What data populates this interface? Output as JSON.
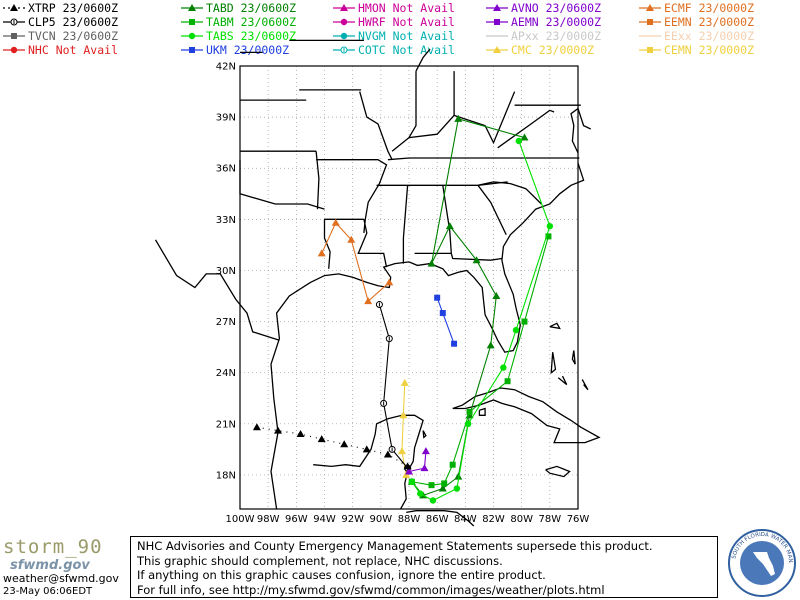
{
  "legend": [
    {
      "label": "XTRP 23/0600Z",
      "color": "#000000",
      "marker": "tri",
      "dash": "dot"
    },
    {
      "label": "TABD 23/0600Z",
      "color": "#008000",
      "marker": "tri",
      "dash": "solid"
    },
    {
      "label": "HMON Not Avail",
      "color": "#cc0099",
      "marker": "tri",
      "dash": "solid"
    },
    {
      "label": "AVNO 23/0600Z",
      "color": "#8000cc",
      "marker": "tri",
      "dash": "solid"
    },
    {
      "label": "ECMF 23/0000Z",
      "color": "#e07020",
      "marker": "tri",
      "dash": "solid"
    },
    {
      "label": "CLP5 23/0600Z",
      "color": "#000000",
      "marker": "circle0",
      "dash": "solid"
    },
    {
      "label": "TABM 23/0600Z",
      "color": "#00b000",
      "marker": "square",
      "dash": "solid"
    },
    {
      "label": "HWRF Not Avail",
      "color": "#cc0099",
      "marker": "circle",
      "dash": "solid"
    },
    {
      "label": "AEMN 23/0000Z",
      "color": "#8000cc",
      "marker": "square",
      "dash": "solid"
    },
    {
      "label": "EEMN 23/0000Z",
      "color": "#e07020",
      "marker": "square",
      "dash": "solid"
    },
    {
      "label": "TVCN 23/0600Z",
      "color": "#606060",
      "marker": "square",
      "dash": "solid"
    },
    {
      "label": "TABS 23/0600Z",
      "color": "#00e000",
      "marker": "circle",
      "dash": "solid"
    },
    {
      "label": "NVGM Not Avail",
      "color": "#00b0b0",
      "marker": "circle",
      "dash": "solid"
    },
    {
      "label": "APxx 23/0000Z",
      "color": "#c8c8c8",
      "marker": "none",
      "dash": "solid"
    },
    {
      "label": "EExx 23/0000Z",
      "color": "#f4d0b0",
      "marker": "none",
      "dash": "solid"
    },
    {
      "label": "NHC Not Avail",
      "color": "#e02020",
      "marker": "circle",
      "dash": "solid"
    },
    {
      "label": "UKM 23/0000Z",
      "color": "#2040e0",
      "marker": "square",
      "dash": "solid"
    },
    {
      "label": "COTC Not Avail",
      "color": "#00b0b0",
      "marker": "circle0",
      "dash": "solid"
    },
    {
      "label": "CMC 23/0000Z",
      "color": "#f0d040",
      "marker": "tri",
      "dash": "solid"
    },
    {
      "label": "CEMN 23/0000Z",
      "color": "#f0d040",
      "marker": "square",
      "dash": "solid"
    }
  ],
  "map": {
    "lat_labels": [
      "42N",
      "39N",
      "36N",
      "33N",
      "30N",
      "27N",
      "24N",
      "21N",
      "18N"
    ],
    "lon_labels": [
      "100W",
      "98W",
      "96W",
      "94W",
      "92W",
      "90W",
      "88W",
      "86W",
      "84W",
      "82W",
      "80W",
      "78W",
      "76W"
    ],
    "lat_values": [
      42,
      39,
      36,
      33,
      30,
      27,
      24,
      21,
      18
    ],
    "lon_values": [
      -100,
      -98,
      -96,
      -94,
      -92,
      -90,
      -88,
      -86,
      -84,
      -82,
      -80,
      -78,
      -76
    ],
    "tracks": [
      {
        "model": "TABD",
        "color": "#008000",
        "marker": "tri",
        "points": [
          [
            -87.8,
            17.6
          ],
          [
            -87.0,
            16.8
          ],
          [
            -85.6,
            17.2
          ],
          [
            -84.5,
            17.9
          ],
          [
            -83.7,
            21.5
          ],
          [
            -82.2,
            25.6
          ],
          [
            -81.8,
            28.5
          ],
          [
            -83.2,
            30.6
          ],
          [
            -85.1,
            32.6
          ],
          [
            -86.4,
            30.4
          ],
          [
            -84.5,
            38.9
          ],
          [
            -79.8,
            37.8
          ]
        ]
      },
      {
        "model": "TABM",
        "color": "#00b000",
        "marker": "square",
        "points": [
          [
            -87.8,
            17.6
          ],
          [
            -86.4,
            17.4
          ],
          [
            -85.5,
            17.5
          ],
          [
            -84.9,
            18.6
          ],
          [
            -83.7,
            21.7
          ],
          [
            -81.0,
            23.5
          ],
          [
            -79.8,
            27.0
          ],
          [
            -78.1,
            32.0
          ]
        ]
      },
      {
        "model": "TABS",
        "color": "#00e000",
        "marker": "circle",
        "points": [
          [
            -87.8,
            17.6
          ],
          [
            -87.2,
            16.9
          ],
          [
            -86.3,
            16.5
          ],
          [
            -84.6,
            17.2
          ],
          [
            -83.8,
            21.0
          ],
          [
            -81.3,
            24.3
          ],
          [
            -80.4,
            26.5
          ],
          [
            -78.0,
            32.6
          ],
          [
            -80.2,
            37.6
          ]
        ]
      },
      {
        "model": "ECMF",
        "color": "#e07020",
        "marker": "tri",
        "points": [
          [
            -89.4,
            29.3
          ],
          [
            -90.9,
            28.2
          ],
          [
            -92.1,
            31.8
          ],
          [
            -93.2,
            32.8
          ],
          [
            -94.2,
            31.0
          ]
        ]
      },
      {
        "model": "UKM",
        "color": "#2040e0",
        "marker": "square",
        "points": [
          [
            -86.0,
            28.4
          ],
          [
            -85.6,
            27.5
          ],
          [
            -84.8,
            25.7
          ]
        ]
      },
      {
        "model": "CMC",
        "color": "#f0d040",
        "marker": "tri",
        "points": [
          [
            -88.2,
            18.0
          ],
          [
            -88.5,
            19.4
          ],
          [
            -88.4,
            21.5
          ],
          [
            -88.3,
            23.4
          ]
        ]
      },
      {
        "model": "CLP5",
        "color": "#000000",
        "marker": "circle0",
        "points": [
          [
            -88.1,
            18.4
          ],
          [
            -89.2,
            19.5
          ],
          [
            -89.8,
            22.2
          ],
          [
            -89.4,
            26.0
          ],
          [
            -90.1,
            28.0
          ]
        ]
      },
      {
        "model": "AVNO",
        "color": "#8000cc",
        "marker": "tri",
        "points": [
          [
            -88.0,
            18.2
          ],
          [
            -86.9,
            18.4
          ],
          [
            -86.8,
            19.4
          ]
        ]
      },
      {
        "model": "XTRP",
        "color": "#000000",
        "marker": "tri",
        "points": [
          [
            -88.1,
            18.5
          ],
          [
            -89.5,
            19.2
          ],
          [
            -91.0,
            19.5
          ],
          [
            -92.6,
            19.8
          ],
          [
            -94.2,
            20.1
          ],
          [
            -95.7,
            20.4
          ],
          [
            -97.3,
            20.6
          ],
          [
            -98.8,
            20.8
          ]
        ]
      }
    ]
  },
  "logo": {
    "name": "storm_90",
    "sfwmd": "sfwmd.gov"
  },
  "contact_email": "weather@sfwmd.gov",
  "timestamp": "23-May 06:06EDT",
  "disclaimer": [
    "NHC Advisories and County Emergency Management Statements supersede this product.",
    "This graphic should complement, not replace, NHC discussions.",
    "If anything on this graphic causes confusion, ignore the entire product.",
    "For full info, see  http://my.sfwmd.gov/sfwmd/common/images/weather/plots.html"
  ],
  "seal_text": "SOUTH FLORIDA WATER MANAGEMENT DISTRICT"
}
